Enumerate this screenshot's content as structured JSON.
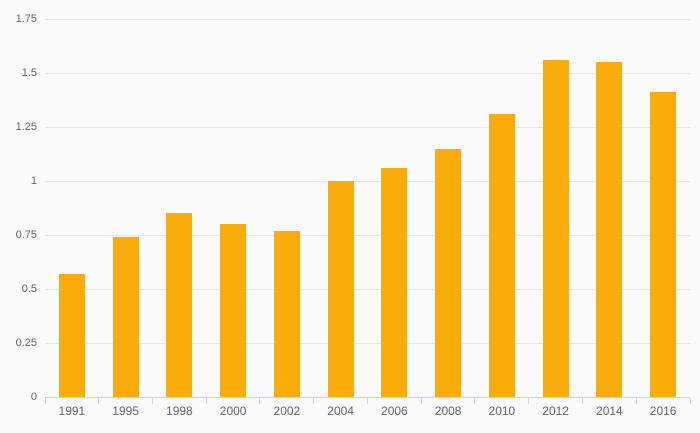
{
  "chart_data": {
    "type": "bar",
    "title": "",
    "xlabel": "",
    "ylabel": "",
    "categories": [
      "1991",
      "1995",
      "1998",
      "2000",
      "2002",
      "2004",
      "2006",
      "2008",
      "2010",
      "2012",
      "2014",
      "2016"
    ],
    "values": [
      0.57,
      0.74,
      0.85,
      0.8,
      0.77,
      1.0,
      1.06,
      1.15,
      1.31,
      1.56,
      1.55,
      1.41
    ],
    "ylim": [
      0,
      1.75
    ],
    "y_tick_labels": [
      "0",
      "0.25",
      "0.5",
      "0.75",
      "1",
      "1.25",
      "1.5",
      "1.75"
    ],
    "grid": "horizontal-only",
    "legend": "none",
    "colors": {
      "bar": "#FAAD0A",
      "gridline": "#E7E7E7",
      "axis_line": "#CCD6EB",
      "tick_mark": "#CCD6EB",
      "label_text": "#666666",
      "background": "#FAFAFA"
    }
  }
}
